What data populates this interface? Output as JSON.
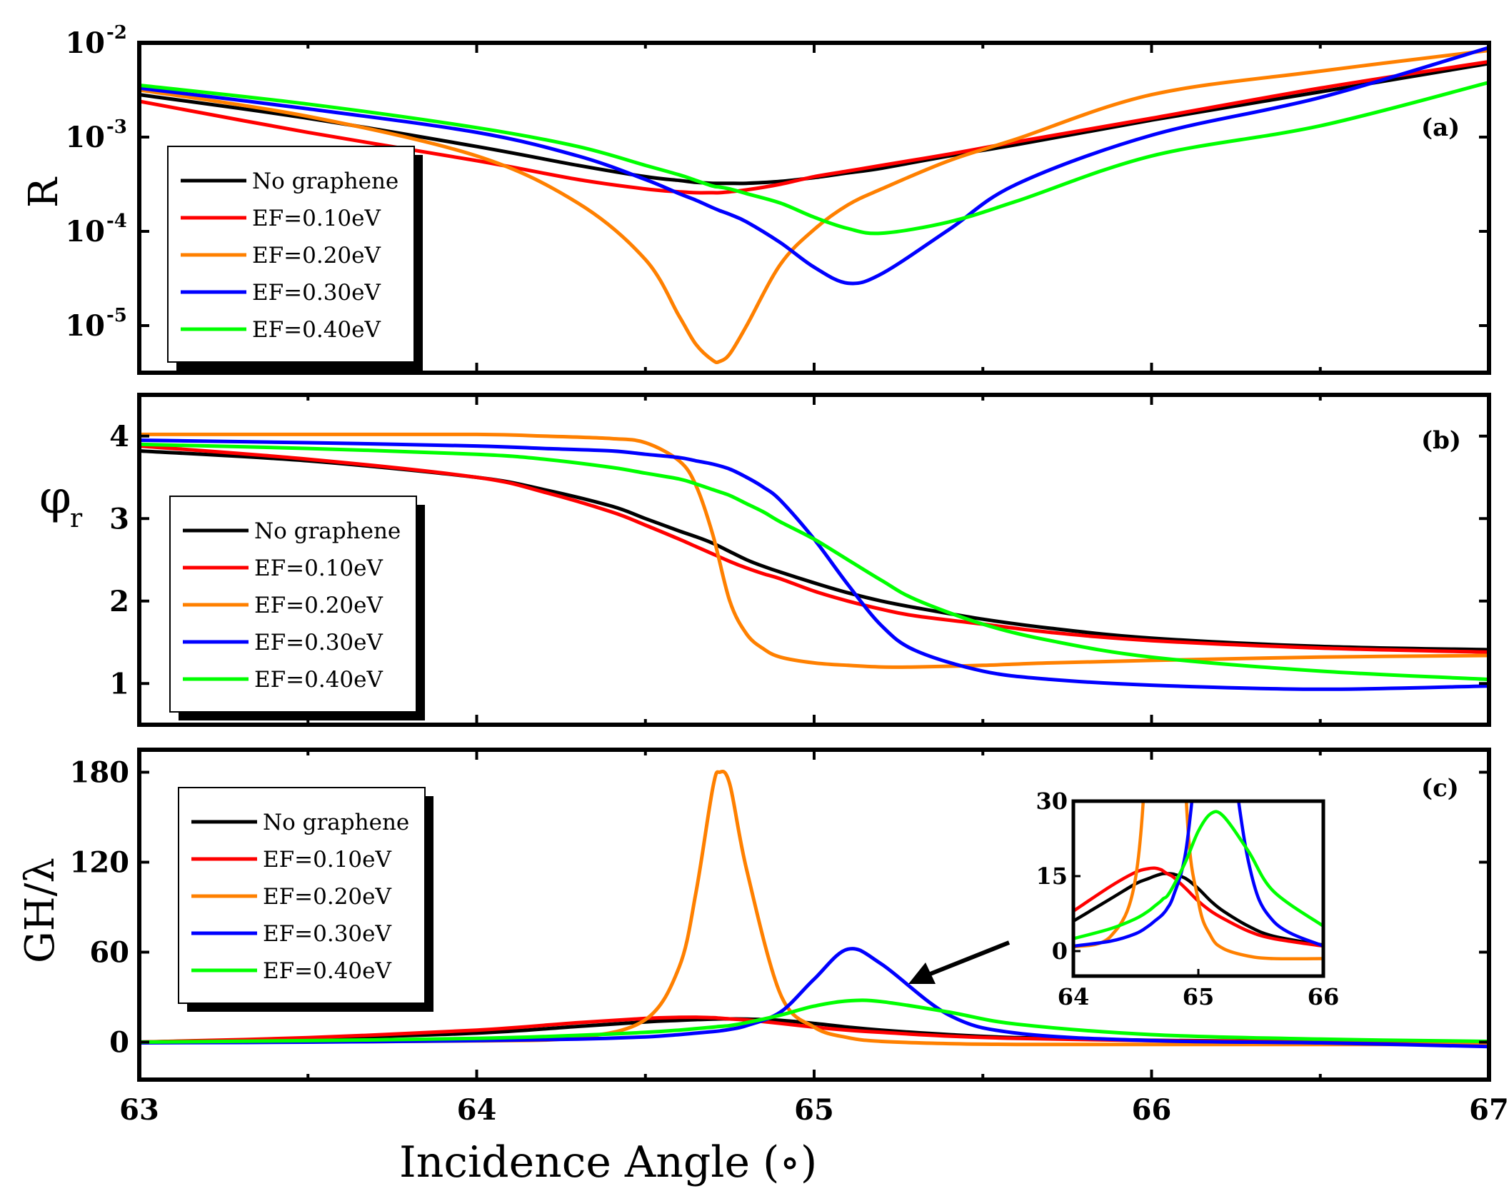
{
  "figure": {
    "xlabel": "Incidence Angle",
    "xlabel_unit": "(∘)",
    "x_ticks": [
      "63",
      "64",
      "65",
      "66",
      "67"
    ],
    "xlim": [
      63,
      67
    ]
  },
  "legend": {
    "items": [
      "No graphene",
      "EF=0.10eV",
      "EF=0.20eV",
      "EF=0.30eV",
      "EF=0.40eV"
    ]
  },
  "colors": {
    "No graphene": "#000000",
    "EF=0.10eV": "#ff0000",
    "EF=0.20eV": "#ff8000",
    "EF=0.30eV": "#0000ff",
    "EF=0.40eV": "#00ff00"
  },
  "chart_data": [
    {
      "type": "line",
      "id": "a",
      "panel_label": "(a)",
      "ylabel": "R",
      "yscale": "log",
      "ylim": [
        -5.5,
        -2
      ],
      "y_ticks": [
        {
          "value": -2,
          "mantissa": "10",
          "exponent": "-2"
        },
        {
          "value": -3,
          "mantissa": "10",
          "exponent": "-3"
        },
        {
          "value": -4,
          "mantissa": "10",
          "exponent": "-4"
        },
        {
          "value": -5,
          "mantissa": "10",
          "exponent": "-5"
        }
      ],
      "x": [
        63.0,
        63.5,
        64.0,
        64.3,
        64.5,
        64.6,
        64.65,
        64.7,
        64.72,
        64.75,
        64.8,
        64.9,
        65.0,
        65.1,
        65.2,
        65.4,
        65.6,
        66.0,
        66.5,
        67.0
      ],
      "series": [
        {
          "name": "No graphene",
          "values": [
            -2.55,
            -2.8,
            -3.1,
            -3.3,
            -3.42,
            -3.46,
            -3.48,
            -3.49,
            -3.49,
            -3.49,
            -3.49,
            -3.47,
            -3.43,
            -3.38,
            -3.33,
            -3.2,
            -3.08,
            -2.82,
            -2.52,
            -2.22
          ]
        },
        {
          "name": "EF=0.10eV",
          "values": [
            -2.62,
            -2.95,
            -3.25,
            -3.45,
            -3.55,
            -3.58,
            -3.59,
            -3.59,
            -3.59,
            -3.58,
            -3.56,
            -3.5,
            -3.42,
            -3.36,
            -3.3,
            -3.18,
            -3.05,
            -2.8,
            -2.48,
            -2.2
          ]
        },
        {
          "name": "EF=0.20eV",
          "values": [
            -2.5,
            -2.78,
            -3.2,
            -3.7,
            -4.3,
            -4.9,
            -5.2,
            -5.37,
            -5.38,
            -5.3,
            -5.0,
            -4.35,
            -3.98,
            -3.72,
            -3.55,
            -3.25,
            -3.02,
            -2.55,
            -2.3,
            -2.08
          ]
        },
        {
          "name": "EF=0.30eV",
          "values": [
            -2.48,
            -2.7,
            -2.95,
            -3.2,
            -3.45,
            -3.6,
            -3.67,
            -3.75,
            -3.78,
            -3.82,
            -3.9,
            -4.12,
            -4.38,
            -4.55,
            -4.45,
            -3.98,
            -3.5,
            -2.98,
            -2.58,
            -2.05
          ]
        },
        {
          "name": "EF=0.40eV",
          "values": [
            -2.45,
            -2.65,
            -2.9,
            -3.1,
            -3.3,
            -3.4,
            -3.46,
            -3.52,
            -3.53,
            -3.55,
            -3.6,
            -3.7,
            -3.85,
            -3.97,
            -4.02,
            -3.9,
            -3.68,
            -3.2,
            -2.88,
            -2.42
          ]
        }
      ]
    },
    {
      "type": "line",
      "id": "b",
      "panel_label": "(b)",
      "ylabel": "φ",
      "ylabel_sub": "r",
      "ylim": [
        0.5,
        4.5
      ],
      "y_ticks": [
        "1",
        "2",
        "3",
        "4"
      ],
      "x": [
        63.0,
        63.5,
        64.0,
        64.2,
        64.4,
        64.5,
        64.6,
        64.65,
        64.7,
        64.75,
        64.8,
        64.85,
        64.9,
        65.0,
        65.1,
        65.2,
        65.3,
        65.5,
        65.7,
        66.0,
        66.5,
        67.0
      ],
      "series": [
        {
          "name": "No graphene",
          "values": [
            3.82,
            3.7,
            3.5,
            3.35,
            3.15,
            3.0,
            2.85,
            2.78,
            2.7,
            2.6,
            2.5,
            2.42,
            2.35,
            2.22,
            2.1,
            2.0,
            1.92,
            1.78,
            1.67,
            1.55,
            1.45,
            1.41
          ]
        },
        {
          "name": "EF=0.10eV",
          "values": [
            3.88,
            3.72,
            3.5,
            3.32,
            3.08,
            2.92,
            2.75,
            2.66,
            2.57,
            2.48,
            2.4,
            2.33,
            2.27,
            2.12,
            2.0,
            1.9,
            1.82,
            1.72,
            1.62,
            1.52,
            1.43,
            1.38
          ]
        },
        {
          "name": "EF=0.20eV",
          "values": [
            4.02,
            4.02,
            4.02,
            4.0,
            3.97,
            3.92,
            3.7,
            3.4,
            2.8,
            2.0,
            1.6,
            1.42,
            1.32,
            1.25,
            1.22,
            1.2,
            1.2,
            1.22,
            1.25,
            1.28,
            1.32,
            1.34
          ]
        },
        {
          "name": "EF=0.30eV",
          "values": [
            3.95,
            3.92,
            3.88,
            3.85,
            3.82,
            3.78,
            3.74,
            3.7,
            3.66,
            3.6,
            3.5,
            3.38,
            3.22,
            2.75,
            2.2,
            1.7,
            1.4,
            1.15,
            1.05,
            0.98,
            0.93,
            0.97
          ]
        },
        {
          "name": "EF=0.40eV",
          "values": [
            3.9,
            3.85,
            3.78,
            3.72,
            3.62,
            3.55,
            3.48,
            3.42,
            3.35,
            3.28,
            3.18,
            3.08,
            2.96,
            2.75,
            2.5,
            2.25,
            2.02,
            1.72,
            1.52,
            1.32,
            1.15,
            1.05
          ]
        }
      ]
    },
    {
      "type": "line",
      "id": "c",
      "panel_label": "(c)",
      "ylabel": "GH/λ",
      "ylim": [
        -25,
        195
      ],
      "y_ticks": [
        "0",
        "60",
        "120",
        "180"
      ],
      "x": [
        63.0,
        63.5,
        64.0,
        64.3,
        64.5,
        64.6,
        64.65,
        64.7,
        64.72,
        64.75,
        64.8,
        64.9,
        65.0,
        65.1,
        65.2,
        65.4,
        65.6,
        66.0,
        66.5,
        67.0
      ],
      "series": [
        {
          "name": "No graphene",
          "values": [
            0,
            2.5,
            6,
            10.5,
            13.5,
            14.5,
            15,
            15.4,
            15.5,
            15.5,
            15.4,
            14.5,
            12.5,
            10,
            8,
            5,
            3,
            1.2,
            0.4,
            0
          ]
        },
        {
          "name": "EF=0.10eV",
          "values": [
            0,
            3,
            8,
            13,
            15.8,
            16.5,
            16.6,
            16.3,
            16,
            15.5,
            14.8,
            12.5,
            10,
            8,
            6.5,
            4,
            2.5,
            1,
            0.3,
            0
          ]
        },
        {
          "name": "EF=0.20eV",
          "values": [
            0,
            0.2,
            0.8,
            3,
            15,
            50,
            100,
            170,
            180,
            172,
            115,
            32,
            10,
            3,
            0.5,
            -1,
            -1.5,
            -1.5,
            -1.5,
            -1.5
          ]
        },
        {
          "name": "EF=0.30eV",
          "values": [
            -0.5,
            0,
            1,
            2,
            3.5,
            5,
            6,
            7,
            7.5,
            8.5,
            11,
            20,
            42,
            62,
            52,
            18,
            6,
            1,
            -0.5,
            -3
          ]
        },
        {
          "name": "EF=0.40eV",
          "values": [
            0,
            1,
            2.5,
            4.5,
            6.5,
            8,
            9,
            10,
            10.5,
            11,
            13,
            18,
            24,
            27.5,
            27,
            20,
            12,
            5,
            2,
            0.5
          ]
        }
      ],
      "inset": {
        "xlim": [
          64,
          66
        ],
        "ylim": [
          -5,
          30
        ],
        "x_ticks": [
          "64",
          "65",
          "66"
        ],
        "y_ticks": [
          "0",
          "15",
          "30"
        ]
      }
    }
  ]
}
